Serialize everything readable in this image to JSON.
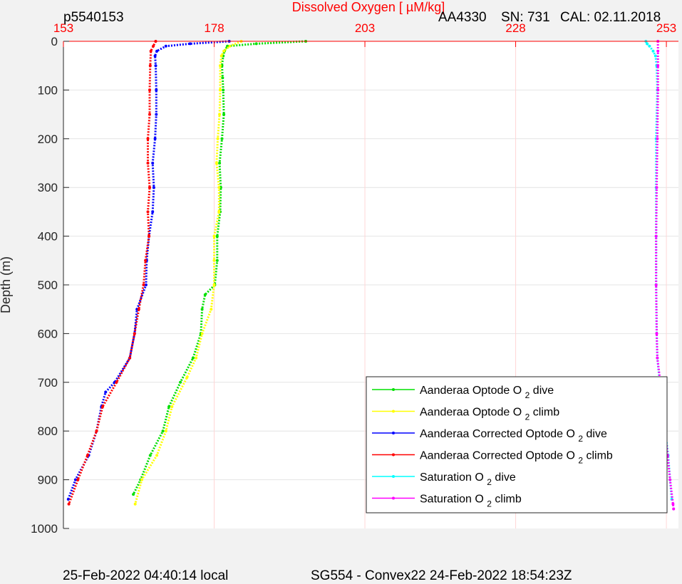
{
  "header": {
    "plot_id": "p5540153",
    "sensor": "AA4330",
    "serial": "SN: 731",
    "calibration": "CAL: 02.11.2018"
  },
  "footer": {
    "local_time": "25-Feb-2022 04:40:14 local",
    "mission": "SG554 - Convex22 24-Feb-2022 18:54:23Z"
  },
  "chart_data": {
    "type": "scatter",
    "title": "Dissolved Oxygen [ µM/kg]",
    "xlabel": "Dissolved Oxygen [ µM/kg]",
    "ylabel": "Depth (m)",
    "xlim": [
      153,
      255
    ],
    "ylim": [
      0,
      1000
    ],
    "y_reversed": true,
    "x_ticks": [
      153,
      178,
      203,
      228,
      253
    ],
    "y_ticks": [
      0,
      100,
      200,
      300,
      400,
      500,
      600,
      700,
      800,
      900,
      1000
    ],
    "grid": true,
    "legend_position": "bottom-right",
    "series": [
      {
        "name": "Aanderaa Optode O2 dive",
        "legend_main": "Aanderaa Optode O",
        "legend_tail": "dive",
        "color": "#00e000",
        "depth": [
          0,
          5,
          10,
          20,
          30,
          50,
          75,
          100,
          150,
          200,
          250,
          300,
          350,
          400,
          450,
          500,
          520,
          550,
          600,
          650,
          700,
          750,
          800,
          850,
          900,
          930
        ],
        "values": [
          193.2,
          185,
          180.2,
          179.7,
          179.5,
          179.3,
          179.4,
          179.5,
          179.6,
          179.3,
          178.9,
          179.1,
          179,
          178.5,
          178.5,
          178.1,
          176.5,
          176,
          175.8,
          174.5,
          172.4,
          170.5,
          169.5,
          167.4,
          165.8,
          164.6
        ]
      },
      {
        "name": "Aanderaa Optode O2 climb",
        "legend_main": "Aanderaa Optode O",
        "legend_tail": "climb",
        "color": "#ffff00",
        "depth": [
          0,
          10,
          20,
          30,
          50,
          100,
          150,
          200,
          250,
          300,
          350,
          400,
          450,
          500,
          550,
          600,
          650,
          690,
          750,
          800,
          850,
          900,
          950
        ],
        "values": [
          182.5,
          180.6,
          179.6,
          179.2,
          179,
          179,
          178.9,
          178.6,
          178.4,
          178.8,
          178.8,
          178,
          178,
          178,
          177.5,
          176,
          175,
          173.5,
          171,
          170,
          168.5,
          166,
          164.9
        ]
      },
      {
        "name": "Aanderaa Corrected Optode O2 dive",
        "legend_main": "Aanderaa Corrected Optode O",
        "legend_tail": "dive",
        "color": "#0000ff",
        "depth": [
          0,
          5,
          10,
          20,
          30,
          50,
          100,
          150,
          200,
          250,
          300,
          350,
          400,
          450,
          500,
          550,
          600,
          650,
          700,
          720,
          750,
          800,
          850,
          900,
          940
        ],
        "values": [
          180.5,
          174,
          170,
          168.5,
          168.2,
          168.3,
          168.4,
          168.4,
          168.2,
          167.8,
          168,
          167.8,
          167.2,
          166.8,
          166.7,
          165.2,
          164.8,
          164,
          161.5,
          160,
          159.3,
          158.5,
          157.2,
          155,
          153.8
        ]
      },
      {
        "name": "Aanderaa Corrected Optode O2 climb",
        "legend_main": "Aanderaa Corrected Optode O",
        "legend_tail": "climb",
        "color": "#ff0000",
        "depth": [
          0,
          10,
          20,
          50,
          100,
          150,
          200,
          250,
          300,
          350,
          400,
          450,
          500,
          550,
          600,
          650,
          700,
          750,
          800,
          850,
          900,
          950
        ],
        "values": [
          168.3,
          167.9,
          167.5,
          167.4,
          167.3,
          167.3,
          167,
          167,
          167.3,
          167,
          167.2,
          166.6,
          166.3,
          165.5,
          164.8,
          164,
          161.8,
          159.5,
          158.5,
          157,
          155.4,
          153.9
        ]
      },
      {
        "name": "Saturation O2 dive",
        "legend_main": "Saturation O",
        "legend_tail": "dive",
        "color": "#00ffff",
        "depth": [
          0,
          5,
          10,
          20,
          30,
          50,
          100,
          200,
          300,
          400,
          500,
          600,
          650,
          700,
          750,
          800,
          850,
          900,
          940
        ],
        "values": [
          249.6,
          249.8,
          250.2,
          250.8,
          251.2,
          251.4,
          251.5,
          251.3,
          251.3,
          251.3,
          251.3,
          251.4,
          251.5,
          251.9,
          252.3,
          252.8,
          253.3,
          253.6,
          253.9
        ]
      },
      {
        "name": "Saturation O2 climb",
        "legend_main": "Saturation O",
        "legend_tail": "climb",
        "color": "#ff00ff",
        "depth": [
          0,
          20,
          50,
          100,
          200,
          300,
          400,
          500,
          600,
          650,
          700,
          750,
          800,
          850,
          900,
          950,
          960
        ],
        "values": [
          251.6,
          251.6,
          251.6,
          251.6,
          251.5,
          251.4,
          251.3,
          251.3,
          251.4,
          251.5,
          252,
          252.3,
          252.8,
          253.2,
          253.6,
          254.1,
          254.2
        ]
      }
    ]
  }
}
